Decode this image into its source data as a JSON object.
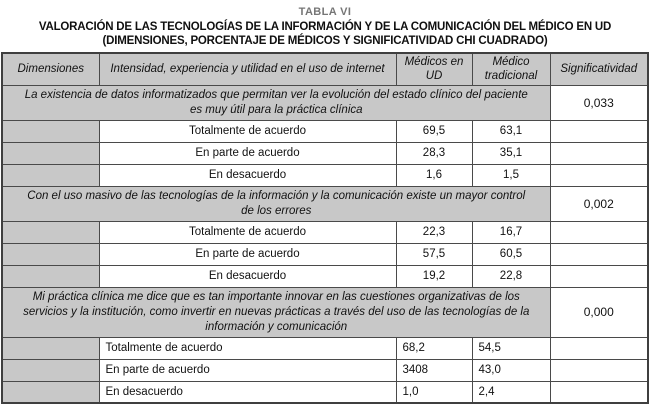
{
  "title": {
    "label": "TABLA VI",
    "line1": "VALORACIÓN DE LAS TECNOLOGÍAS DE LA INFORMACIÓN Y DE LA COMUNICACIÓN DEL MÉDICO EN UD",
    "line2": "(DIMENSIONES, PORCENTAJE DE MÉDICOS Y SIGNIFICATIVIDAD CHI CUADRADO)"
  },
  "colors": {
    "header_bg": "#c8c8c8",
    "border": "#4a4a4a",
    "title_muted": "#767676"
  },
  "table": {
    "headers": {
      "dimensiones": "Dimensiones",
      "intensidad": "Intensidad, experiencia y utilidad en el uso de internet",
      "medicos_ud": "Médicos en UD",
      "medico_tradicional": "Médico tradicional",
      "significatividad": "Significatividad"
    },
    "sections": [
      {
        "statement": "La existencia de datos informatizados que permitan ver la evolución del estado clínico del paciente es muy útil para la práctica clínica",
        "significance": "0,033",
        "rows": [
          {
            "label": "Totalmente de acuerdo",
            "medicos_ud": "69,5",
            "medico_tradicional": "63,1"
          },
          {
            "label": "En parte de acuerdo",
            "medicos_ud": "28,3",
            "medico_tradicional": "35,1"
          },
          {
            "label": "En desacuerdo",
            "medicos_ud": "1,6",
            "medico_tradicional": "1,5"
          }
        ]
      },
      {
        "statement": "Con el uso masivo de las tecnologías de la información y la comunicación existe un mayor control de los errores",
        "significance": "0,002",
        "rows": [
          {
            "label": "Totalmente de acuerdo",
            "medicos_ud": "22,3",
            "medico_tradicional": "16,7"
          },
          {
            "label": "En parte de acuerdo",
            "medicos_ud": "57,5",
            "medico_tradicional": "60,5"
          },
          {
            "label": "En desacuerdo",
            "medicos_ud": "19,2",
            "medico_tradicional": "22,8"
          }
        ]
      },
      {
        "statement": "Mi práctica clínica me dice que es tan importante innovar en las cuestiones organizativas de los servicios y la institución, como invertir en nuevas prácticas a través del uso de las tecnologías de la información y comunicación",
        "significance": "0,000",
        "rows": [
          {
            "label": "Totalmente de acuerdo",
            "medicos_ud": "68,2",
            "medico_tradicional": "54,5"
          },
          {
            "label": "En parte de acuerdo",
            "medicos_ud": "3408",
            "medico_tradicional": "43,0"
          },
          {
            "label": "En desacuerdo",
            "medicos_ud": "1,0",
            "medico_tradicional": "2,4"
          }
        ]
      }
    ]
  }
}
